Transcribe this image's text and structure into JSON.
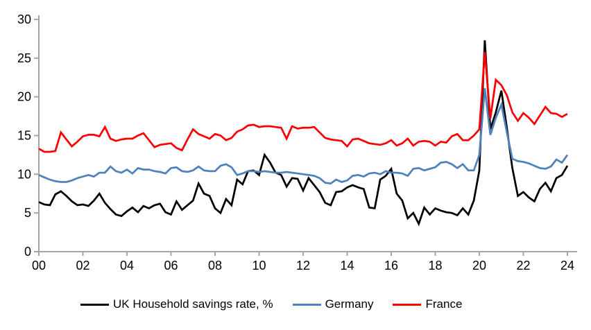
{
  "chart_data": {
    "type": "line",
    "title": "",
    "xlabel": "",
    "ylabel": "",
    "frequency": "quarterly",
    "x_start": "2000Q1",
    "x_end": "2024Q1",
    "points_per_series": 97,
    "ylim": [
      0,
      30
    ],
    "y_ticks": [
      0,
      5,
      10,
      15,
      20,
      25,
      30
    ],
    "x_tick_labels": [
      "00",
      "02",
      "04",
      "06",
      "08",
      "10",
      "12",
      "14",
      "16",
      "18",
      "20",
      "22",
      "24"
    ],
    "grid": "off",
    "legend_position": "bottom",
    "axis_color": "#a6a6a6",
    "series": [
      {
        "name": "UK Household savings rate, %",
        "color": "#000000",
        "values": [
          6.4,
          6.1,
          6.0,
          7.4,
          7.8,
          7.2,
          6.5,
          6.0,
          6.1,
          5.9,
          6.6,
          7.5,
          6.3,
          5.5,
          4.8,
          4.6,
          5.2,
          5.7,
          5.1,
          5.9,
          5.6,
          6.0,
          6.2,
          5.1,
          4.8,
          6.5,
          5.4,
          6.0,
          6.6,
          8.8,
          7.5,
          7.2,
          5.6,
          5.0,
          6.8,
          6.0,
          9.3,
          8.7,
          10.4,
          10.5,
          9.9,
          12.5,
          11.5,
          10.2,
          9.9,
          8.4,
          9.5,
          9.4,
          7.9,
          9.5,
          8.6,
          7.7,
          6.3,
          6.0,
          7.7,
          7.8,
          8.3,
          8.6,
          8.3,
          8.1,
          5.7,
          5.6,
          9.3,
          9.8,
          10.7,
          7.5,
          6.6,
          4.3,
          5.0,
          3.6,
          5.7,
          4.8,
          5.6,
          5.3,
          5.1,
          5.0,
          4.7,
          5.6,
          4.8,
          6.6,
          10.5,
          27.3,
          15.8,
          18.0,
          20.8,
          16.0,
          10.8,
          7.2,
          7.7,
          7.0,
          6.5,
          8.1,
          8.9,
          7.8,
          9.5,
          9.9,
          11.1
        ]
      },
      {
        "name": "Germany",
        "color": "#4f81bd",
        "values": [
          9.9,
          9.6,
          9.3,
          9.1,
          9.0,
          9.0,
          9.2,
          9.5,
          9.7,
          9.9,
          9.7,
          10.2,
          10.2,
          11.0,
          10.4,
          10.2,
          10.6,
          10.1,
          10.8,
          10.6,
          10.6,
          10.4,
          10.3,
          10.1,
          10.8,
          10.9,
          10.4,
          10.3,
          10.5,
          11.0,
          10.5,
          10.4,
          10.4,
          11.1,
          11.3,
          10.9,
          9.9,
          10.1,
          10.4,
          10.4,
          10.3,
          10.4,
          10.3,
          10.2,
          10.2,
          10.3,
          10.2,
          10.1,
          10.0,
          9.9,
          9.8,
          9.5,
          8.9,
          8.8,
          9.3,
          9.0,
          9.2,
          9.8,
          9.9,
          9.7,
          10.1,
          10.2,
          10.0,
          10.4,
          10.2,
          10.2,
          10.1,
          9.8,
          10.7,
          10.8,
          10.5,
          10.7,
          10.9,
          11.5,
          11.6,
          11.3,
          10.8,
          11.3,
          10.5,
          10.5,
          12.5,
          21.1,
          15.1,
          17.3,
          19.0,
          15.4,
          12.0,
          11.7,
          11.6,
          11.4,
          11.1,
          10.8,
          10.7,
          11.0,
          11.9,
          11.5,
          12.5
        ]
      },
      {
        "name": "France",
        "color": "#ff0000",
        "values": [
          13.3,
          12.9,
          12.9,
          13.0,
          15.4,
          14.5,
          13.6,
          14.2,
          14.9,
          15.1,
          15.1,
          14.9,
          16.1,
          14.6,
          14.3,
          14.5,
          14.6,
          14.6,
          15.0,
          15.3,
          14.4,
          13.5,
          13.8,
          13.9,
          14.0,
          13.4,
          13.1,
          14.5,
          15.8,
          15.2,
          14.9,
          14.6,
          15.2,
          15.0,
          14.4,
          14.7,
          15.5,
          15.8,
          16.3,
          16.4,
          16.1,
          16.2,
          16.2,
          16.1,
          16.0,
          14.6,
          16.2,
          15.9,
          16.0,
          16.0,
          16.1,
          15.4,
          14.7,
          14.5,
          14.4,
          14.3,
          13.6,
          14.5,
          14.6,
          14.3,
          14.0,
          13.9,
          13.8,
          14.0,
          14.4,
          13.7,
          14.0,
          14.6,
          13.7,
          14.2,
          14.3,
          14.2,
          13.7,
          14.2,
          14.1,
          14.9,
          15.2,
          14.4,
          14.4,
          15.0,
          15.8,
          25.8,
          17.2,
          22.2,
          21.5,
          20.2,
          18.0,
          16.9,
          17.9,
          17.3,
          16.5,
          17.6,
          18.7,
          17.9,
          17.8,
          17.4,
          17.8
        ]
      }
    ]
  }
}
